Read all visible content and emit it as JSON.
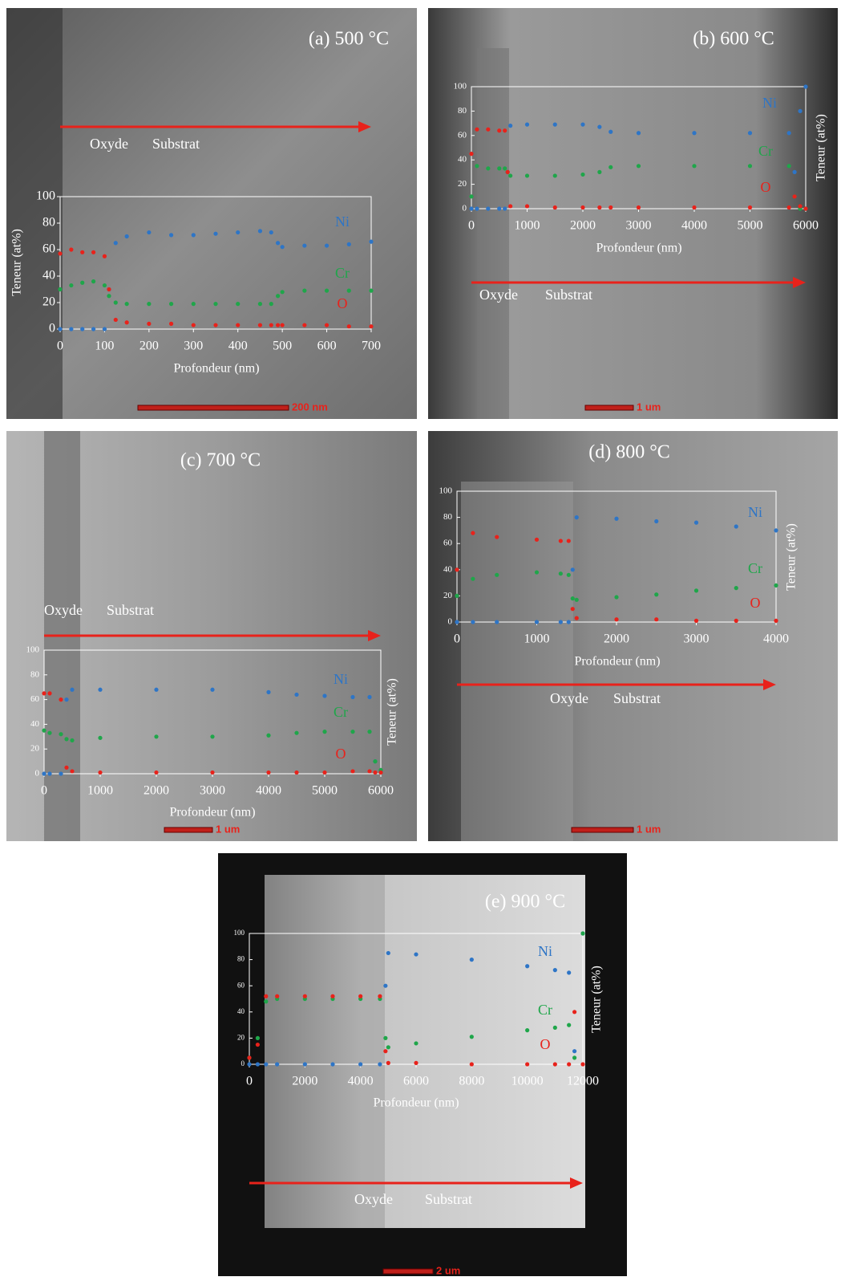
{
  "chart_data": [
    {
      "type": "scatter",
      "title": "(a) 500 °C",
      "x_label": "Profondeur (nm)",
      "y_label": "Teneur (at%)",
      "y_axis_side": "left",
      "annotations": [
        "Oxyde",
        "Substrat"
      ],
      "scale_bar": "200 nm",
      "x": [
        0,
        25,
        50,
        75,
        100,
        110,
        125,
        150,
        200,
        250,
        300,
        350,
        400,
        450,
        475,
        490,
        500,
        550,
        600,
        650,
        700
      ],
      "series": [
        {
          "name": "Ni",
          "color": "#2e75c6",
          "values": [
            0,
            0,
            0,
            0,
            0,
            30,
            65,
            70,
            73,
            71,
            71,
            72,
            73,
            74,
            73,
            65,
            62,
            63,
            63,
            64,
            66
          ]
        },
        {
          "name": "Cr",
          "color": "#1fa64a",
          "values": [
            30,
            33,
            35,
            36,
            33,
            25,
            20,
            19,
            19,
            19,
            19,
            19,
            19,
            19,
            19,
            25,
            28,
            29,
            29,
            29,
            29
          ]
        },
        {
          "name": "O",
          "color": "#e8221b",
          "values": [
            57,
            60,
            58,
            58,
            55,
            30,
            7,
            5,
            4,
            4,
            3,
            3,
            3,
            3,
            3,
            3,
            3,
            3,
            3,
            2,
            2
          ]
        }
      ],
      "xlim": [
        0,
        700
      ],
      "xticks": [
        0,
        100,
        200,
        300,
        400,
        500,
        600,
        700
      ],
      "ylim": [
        0,
        100
      ],
      "yticks": [
        0,
        20,
        40,
        60,
        80,
        100
      ]
    },
    {
      "type": "scatter",
      "title": "(b) 600 °C",
      "x_label": "Profondeur (nm)",
      "y_label": "Teneur (at%)",
      "y_axis_side": "right",
      "annotations": [
        "Oxyde",
        "Substrat"
      ],
      "scale_bar": "1 um",
      "x": [
        0,
        100,
        300,
        500,
        600,
        650,
        700,
        1000,
        1500,
        2000,
        2300,
        2500,
        3000,
        4000,
        5000,
        5700,
        5800,
        5900,
        6000
      ],
      "series": [
        {
          "name": "Ni",
          "color": "#2e75c6",
          "values": [
            0,
            0,
            0,
            0,
            0,
            30,
            68,
            69,
            69,
            69,
            67,
            63,
            62,
            62,
            62,
            62,
            30,
            80,
            100
          ]
        },
        {
          "name": "Cr",
          "color": "#1fa64a",
          "values": [
            10,
            35,
            33,
            33,
            33,
            30,
            27,
            27,
            27,
            28,
            30,
            34,
            35,
            35,
            35,
            35,
            10,
            0,
            0
          ]
        },
        {
          "name": "O",
          "color": "#e8221b",
          "values": [
            45,
            65,
            65,
            64,
            64,
            30,
            2,
            2,
            1,
            1,
            1,
            1,
            1,
            1,
            1,
            1,
            10,
            2,
            0
          ]
        }
      ],
      "xlim": [
        0,
        6000
      ],
      "xticks": [
        0,
        1000,
        2000,
        3000,
        4000,
        5000,
        6000
      ],
      "ylim": [
        0,
        100
      ],
      "yticks": [
        0,
        20,
        40,
        60,
        80,
        100
      ]
    },
    {
      "type": "scatter",
      "title": "(c) 700 °C",
      "x_label": "Profondeur (nm)",
      "y_label": "Teneur (at%)",
      "y_axis_side": "right",
      "annotations": [
        "Oxyde",
        "Substrat"
      ],
      "scale_bar": "1 um",
      "x": [
        0,
        100,
        300,
        400,
        500,
        1000,
        2000,
        3000,
        4000,
        4500,
        5000,
        5500,
        5800,
        5900,
        6000
      ],
      "series": [
        {
          "name": "Ni",
          "color": "#2e75c6",
          "values": [
            0,
            0,
            0,
            60,
            68,
            68,
            68,
            68,
            66,
            64,
            63,
            62,
            62,
            10,
            2
          ]
        },
        {
          "name": "Cr",
          "color": "#1fa64a",
          "values": [
            35,
            33,
            32,
            28,
            27,
            29,
            30,
            30,
            31,
            33,
            34,
            34,
            34,
            10,
            3
          ]
        },
        {
          "name": "O",
          "color": "#e8221b",
          "values": [
            65,
            65,
            60,
            5,
            2,
            1,
            1,
            1,
            1,
            1,
            1,
            2,
            2,
            1,
            1
          ]
        }
      ],
      "xlim": [
        0,
        6000
      ],
      "xticks": [
        0,
        1000,
        2000,
        3000,
        4000,
        5000,
        6000
      ],
      "ylim": [
        0,
        100
      ],
      "yticks": [
        0,
        20,
        40,
        60,
        80,
        100
      ]
    },
    {
      "type": "scatter",
      "title": "(d) 800 °C",
      "x_label": "Profondeur (nm)",
      "y_label": "Teneur (at%)",
      "y_axis_side": "right",
      "annotations": [
        "Oxyde",
        "Substrat"
      ],
      "scale_bar": "1 um",
      "x": [
        0,
        200,
        500,
        1000,
        1300,
        1400,
        1450,
        1500,
        2000,
        2500,
        3000,
        3500,
        4000
      ],
      "series": [
        {
          "name": "Ni",
          "color": "#2e75c6",
          "values": [
            0,
            0,
            0,
            0,
            0,
            0,
            40,
            80,
            79,
            77,
            76,
            73,
            70
          ]
        },
        {
          "name": "Cr",
          "color": "#1fa64a",
          "values": [
            20,
            33,
            36,
            38,
            37,
            36,
            18,
            17,
            19,
            21,
            24,
            26,
            28
          ]
        },
        {
          "name": "O",
          "color": "#e8221b",
          "values": [
            40,
            68,
            65,
            63,
            62,
            62,
            10,
            3,
            2,
            2,
            1,
            1,
            1
          ]
        }
      ],
      "xlim": [
        0,
        4000
      ],
      "xticks": [
        0,
        1000,
        2000,
        3000,
        4000
      ],
      "ylim": [
        0,
        100
      ],
      "yticks": [
        0,
        20,
        40,
        60,
        80,
        100
      ]
    },
    {
      "type": "scatter",
      "title": "(e) 900 °C",
      "x_label": "Profondeur (nm)",
      "y_label": "Teneur (at%)",
      "y_axis_side": "right",
      "annotations": [
        "Oxyde",
        "Substrat"
      ],
      "scale_bar": "2 um",
      "x": [
        0,
        300,
        600,
        1000,
        2000,
        3000,
        4000,
        4700,
        4900,
        5000,
        6000,
        8000,
        10000,
        11000,
        11500,
        11700,
        12000
      ],
      "series": [
        {
          "name": "Ni",
          "color": "#2e75c6",
          "values": [
            0,
            0,
            0,
            0,
            0,
            0,
            0,
            0,
            60,
            85,
            84,
            80,
            75,
            72,
            70,
            10,
            100
          ]
        },
        {
          "name": "Cr",
          "color": "#1fa64a",
          "values": [
            5,
            20,
            48,
            50,
            50,
            50,
            50,
            50,
            20,
            13,
            16,
            21,
            26,
            28,
            30,
            5,
            100
          ]
        },
        {
          "name": "O",
          "color": "#e8221b",
          "values": [
            5,
            15,
            52,
            52,
            52,
            52,
            52,
            52,
            10,
            1,
            1,
            0,
            0,
            0,
            0,
            40,
            0
          ]
        }
      ],
      "xlim": [
        0,
        12000
      ],
      "xticks": [
        0,
        2000,
        4000,
        6000,
        8000,
        10000,
        12000
      ],
      "ylim": [
        0,
        100
      ],
      "yticks": [
        0,
        20,
        40,
        60,
        80,
        100
      ]
    }
  ]
}
